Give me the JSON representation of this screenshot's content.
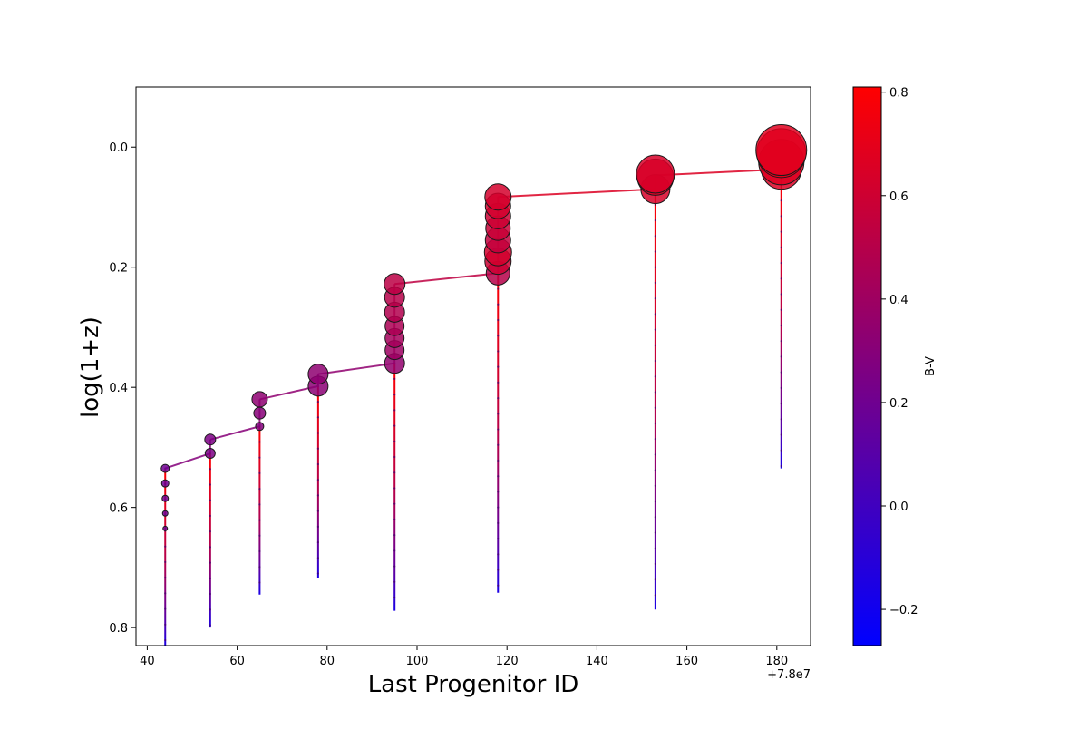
{
  "chart_data": {
    "type": "scatter",
    "xlabel": "Last Progenitor ID",
    "ylabel": "log(1+z)",
    "x_offset_label": "+7.8e7",
    "xlim": [
      37.5,
      187.5
    ],
    "ylim": [
      -0.1,
      0.83
    ],
    "y_inverted": true,
    "grid": false,
    "x_ticks": [
      40,
      60,
      80,
      100,
      120,
      140,
      160,
      180
    ],
    "x_tick_labels": [
      "40",
      "60",
      "80",
      "100",
      "120",
      "140",
      "160",
      "180"
    ],
    "y_ticks": [
      0.0,
      0.2,
      0.4,
      0.6,
      0.8
    ],
    "y_tick_labels": [
      "0.0",
      "0.2",
      "0.4",
      "0.6",
      "0.8"
    ],
    "colorbar": {
      "label": "B-V",
      "range": [
        -0.27,
        0.81
      ],
      "ticks": [
        -0.2,
        0.0,
        0.2,
        0.4,
        0.6,
        0.8
      ],
      "tick_labels": [
        "−0.2",
        "0.0",
        "0.2",
        "0.4",
        "0.6",
        "0.8"
      ],
      "color_low": "#0000ff",
      "color_high": "#ff0000"
    },
    "main_branch": [
      {
        "x": 44,
        "y": 0.535,
        "bv": 0.28
      },
      {
        "x": 54,
        "y": 0.51,
        "bv": 0.3
      },
      {
        "x": 54,
        "y": 0.487,
        "bv": 0.3
      },
      {
        "x": 65,
        "y": 0.465,
        "bv": 0.3
      },
      {
        "x": 65,
        "y": 0.42,
        "bv": 0.35
      },
      {
        "x": 78,
        "y": 0.398,
        "bv": 0.32
      },
      {
        "x": 78,
        "y": 0.378,
        "bv": 0.33
      },
      {
        "x": 95,
        "y": 0.36,
        "bv": 0.35
      },
      {
        "x": 95,
        "y": 0.228,
        "bv": 0.52
      },
      {
        "x": 118,
        "y": 0.21,
        "bv": 0.55
      },
      {
        "x": 118,
        "y": 0.083,
        "bv": 0.66
      },
      {
        "x": 153,
        "y": 0.07,
        "bv": 0.66
      },
      {
        "x": 153,
        "y": 0.047,
        "bv": 0.66
      },
      {
        "x": 181,
        "y": 0.037,
        "bv": 0.66
      },
      {
        "x": 181,
        "y": 0.01,
        "bv": 0.68
      }
    ],
    "branches": [
      {
        "x": 44,
        "y_top": 0.535,
        "y_bottom": 0.83,
        "markers": [
          {
            "y": 0.535,
            "size": 9,
            "bv": 0.2
          },
          {
            "y": 0.56,
            "size": 8,
            "bv": 0.2
          },
          {
            "y": 0.585,
            "size": 7,
            "bv": 0.2
          },
          {
            "y": 0.61,
            "size": 6,
            "bv": 0.2
          },
          {
            "y": 0.635,
            "size": 5,
            "bv": 0.2
          }
        ]
      },
      {
        "x": 54,
        "y_top": 0.51,
        "y_bottom": 0.8,
        "markers": [
          {
            "y": 0.51,
            "size": 11,
            "bv": 0.25
          },
          {
            "y": 0.487,
            "size": 12,
            "bv": 0.25
          }
        ]
      },
      {
        "x": 65,
        "y_top": 0.465,
        "y_bottom": 0.745,
        "markers": [
          {
            "y": 0.465,
            "size": 9,
            "bv": 0.28
          },
          {
            "y": 0.443,
            "size": 13,
            "bv": 0.3
          },
          {
            "y": 0.42,
            "size": 17,
            "bv": 0.33
          }
        ]
      },
      {
        "x": 78,
        "y_top": 0.398,
        "y_bottom": 0.717,
        "markers": [
          {
            "y": 0.398,
            "size": 22,
            "bv": 0.32
          },
          {
            "y": 0.378,
            "size": 22,
            "bv": 0.33
          }
        ]
      },
      {
        "x": 95,
        "y_top": 0.36,
        "y_bottom": 0.772,
        "markers": [
          {
            "y": 0.36,
            "size": 22,
            "bv": 0.35
          },
          {
            "y": 0.338,
            "size": 21,
            "bv": 0.4
          },
          {
            "y": 0.318,
            "size": 21,
            "bv": 0.43
          },
          {
            "y": 0.298,
            "size": 21,
            "bv": 0.46
          },
          {
            "y": 0.275,
            "size": 22,
            "bv": 0.48
          },
          {
            "y": 0.25,
            "size": 22,
            "bv": 0.5
          },
          {
            "y": 0.228,
            "size": 23,
            "bv": 0.52
          }
        ]
      },
      {
        "x": 118,
        "y_top": 0.21,
        "y_bottom": 0.742,
        "markers": [
          {
            "y": 0.21,
            "size": 26,
            "bv": 0.5
          },
          {
            "y": 0.19,
            "size": 29,
            "bv": 0.6
          },
          {
            "y": 0.175,
            "size": 30,
            "bv": 0.62
          },
          {
            "y": 0.155,
            "size": 28,
            "bv": 0.55
          },
          {
            "y": 0.135,
            "size": 27,
            "bv": 0.58
          },
          {
            "y": 0.115,
            "size": 28,
            "bv": 0.6
          },
          {
            "y": 0.098,
            "size": 28,
            "bv": 0.62
          },
          {
            "y": 0.083,
            "size": 29,
            "bv": 0.63
          }
        ]
      },
      {
        "x": 153,
        "y_top": 0.07,
        "y_bottom": 0.77,
        "markers": [
          {
            "y": 0.07,
            "size": 32,
            "bv": 0.64
          },
          {
            "y": 0.05,
            "size": 40,
            "bv": 0.66
          },
          {
            "y": 0.045,
            "size": 42,
            "bv": 0.64
          }
        ]
      },
      {
        "x": 181,
        "y_top": 0.037,
        "y_bottom": 0.535,
        "markers": [
          {
            "y": 0.037,
            "size": 44,
            "bv": 0.66
          },
          {
            "y": 0.025,
            "size": 50,
            "bv": 0.67
          },
          {
            "y": 0.01,
            "size": 54,
            "bv": 0.7
          },
          {
            "y": 0.005,
            "size": 56,
            "bv": 0.68
          }
        ]
      }
    ]
  }
}
